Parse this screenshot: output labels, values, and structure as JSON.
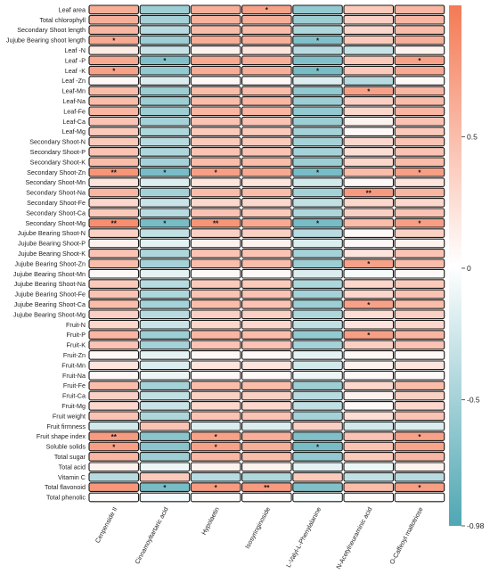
{
  "chart_data": {
    "type": "heatmap",
    "rows": [
      "Leaf area",
      "Total chlorophyll",
      "Secondary Shoot length",
      "Jujube Bearing shoot length",
      "Leaf -N",
      "Leaf -P",
      "Leaf -K",
      "Leaf -Zn",
      "Leaf-Mn",
      "Leaf-Na",
      "Leaf-Fe",
      "Leaf-Ca",
      "Leaf-Mg",
      "Secondary Shoot-N",
      "Secondary Shoot-P",
      "Secondary Shoot-K",
      "Secondary Shoot-Zn",
      "Secondary Shoot-Mn",
      "Secondary Shoot-Na",
      "Secondary Shoot-Fe",
      "Secondary Shoot-Ca",
      "Secondary Shoot-Mg",
      "Jujube Bearing Shoot-N",
      "Jujube Bearing Shoot-P",
      "Jujube Bearing Shoot-K",
      "Jujube Bearing Shoot-Zn",
      "Jujube Bearing Shoot-Mn",
      "Jujube Bearing Shoot-Na",
      "Jujube Bearing Shoot-Fe",
      "Jujube Bearing Shoot-Ca",
      "Jujube Bearing Shoot-Mg",
      "Fruit-N",
      "Fruit-P",
      "Fruit-K",
      "Fruit-Zn",
      "Fruit-Mn",
      "Fruit-Na",
      "Fruit-Fe",
      "Fruit-Ca",
      "Fruit-Mg",
      "Fruit weight",
      "Fruit firmness",
      "Fruit shape index",
      "Soluble solids",
      "Total sugar",
      "Total acid",
      "Vitamin C",
      "Total flavonoid",
      "Total phenolic"
    ],
    "columns": [
      "Cenpenside II",
      "Cinnamoyltartaric acid",
      "Hypolaetin",
      "Isosyringinoside",
      "L-Valyl-L-Phenylalanine",
      "N-Acetylneuraminic acid",
      "O-Caffeoyl maltotriose"
    ],
    "values": [
      [
        0.62,
        -0.55,
        0.6,
        0.7,
        -0.6,
        0.4,
        0.55
      ],
      [
        0.6,
        -0.5,
        0.58,
        0.6,
        -0.55,
        0.35,
        0.55
      ],
      [
        0.55,
        -0.4,
        0.5,
        0.5,
        -0.45,
        0.3,
        0.5
      ],
      [
        0.65,
        -0.55,
        0.62,
        0.6,
        -0.7,
        0.4,
        0.6
      ],
      [
        0.15,
        -0.3,
        0.1,
        0.2,
        -0.4,
        -0.3,
        0.1
      ],
      [
        0.65,
        -0.7,
        0.65,
        0.6,
        -0.7,
        0.4,
        0.7
      ],
      [
        0.7,
        -0.6,
        0.62,
        0.6,
        -0.75,
        0.4,
        0.65
      ],
      [
        0.05,
        -0.2,
        0.05,
        0.05,
        -0.2,
        -0.4,
        0.05
      ],
      [
        0.5,
        -0.55,
        0.5,
        0.5,
        -0.6,
        0.7,
        0.55
      ],
      [
        0.5,
        -0.55,
        0.5,
        0.55,
        -0.55,
        0.35,
        0.5
      ],
      [
        0.55,
        -0.55,
        0.55,
        0.55,
        -0.6,
        0.3,
        0.55
      ],
      [
        0.45,
        -0.5,
        0.45,
        0.45,
        -0.55,
        0.1,
        0.45
      ],
      [
        0.4,
        -0.45,
        0.4,
        0.4,
        -0.5,
        0.05,
        0.4
      ],
      [
        0.4,
        -0.4,
        0.4,
        0.4,
        -0.5,
        0.3,
        0.45
      ],
      [
        0.45,
        -0.45,
        0.45,
        0.45,
        -0.5,
        0.25,
        0.45
      ],
      [
        0.5,
        -0.5,
        0.5,
        0.5,
        -0.55,
        0.3,
        0.5
      ],
      [
        0.8,
        -0.75,
        0.72,
        0.65,
        -0.75,
        0.5,
        0.72
      ],
      [
        0.2,
        -0.2,
        0.2,
        0.2,
        -0.25,
        0.05,
        0.2
      ],
      [
        0.55,
        -0.5,
        0.5,
        0.5,
        -0.5,
        0.75,
        0.55
      ],
      [
        0.3,
        -0.3,
        0.3,
        0.3,
        -0.35,
        0.3,
        0.3
      ],
      [
        0.4,
        -0.4,
        0.45,
        0.4,
        -0.45,
        0.35,
        0.45
      ],
      [
        0.85,
        -0.75,
        0.8,
        0.65,
        -0.75,
        0.5,
        0.72
      ],
      [
        0.35,
        -0.35,
        0.35,
        0.35,
        -0.4,
        0.05,
        0.35
      ],
      [
        0.1,
        -0.15,
        0.1,
        0.1,
        -0.2,
        0.05,
        0.1
      ],
      [
        0.45,
        -0.45,
        0.45,
        0.45,
        -0.5,
        0.2,
        0.45
      ],
      [
        0.5,
        -0.5,
        0.5,
        0.5,
        -0.55,
        0.7,
        0.5
      ],
      [
        0.05,
        -0.15,
        0.05,
        0.05,
        -0.2,
        -0.05,
        0.05
      ],
      [
        0.4,
        -0.4,
        0.4,
        0.4,
        -0.45,
        0.3,
        0.4
      ],
      [
        0.45,
        -0.45,
        0.45,
        0.45,
        -0.5,
        0.3,
        0.45
      ],
      [
        0.5,
        -0.5,
        0.5,
        0.45,
        -0.55,
        0.7,
        0.5
      ],
      [
        0.35,
        -0.4,
        0.35,
        0.35,
        -0.45,
        0.25,
        0.35
      ],
      [
        0.3,
        -0.3,
        0.3,
        0.3,
        -0.35,
        0.2,
        0.3
      ],
      [
        0.55,
        -0.55,
        0.55,
        0.5,
        -0.6,
        0.72,
        0.55
      ],
      [
        0.45,
        -0.5,
        0.45,
        0.45,
        -0.5,
        0.35,
        0.45
      ],
      [
        0.05,
        -0.15,
        0.05,
        0.05,
        -0.15,
        0.05,
        0.05
      ],
      [
        0.2,
        -0.2,
        0.2,
        0.2,
        -0.25,
        0.1,
        0.2
      ],
      [
        0.05,
        -0.1,
        0.05,
        0.05,
        -0.1,
        0.05,
        0.05
      ],
      [
        0.5,
        -0.5,
        0.5,
        0.5,
        -0.55,
        0.3,
        0.5
      ],
      [
        0.35,
        -0.35,
        0.35,
        0.35,
        -0.4,
        0.1,
        0.35
      ],
      [
        0.3,
        -0.3,
        0.3,
        0.3,
        -0.35,
        0.05,
        0.3
      ],
      [
        0.45,
        -0.45,
        0.45,
        0.45,
        -0.5,
        0.25,
        0.45
      ],
      [
        -0.25,
        0.45,
        -0.2,
        -0.2,
        0.35,
        -0.25,
        -0.2
      ],
      [
        0.75,
        -0.65,
        0.7,
        0.6,
        -0.7,
        0.45,
        0.7
      ],
      [
        0.72,
        -0.65,
        0.7,
        0.6,
        -0.75,
        0.45,
        0.68
      ],
      [
        0.55,
        -0.55,
        0.55,
        0.5,
        -0.6,
        0.4,
        0.55
      ],
      [
        0.1,
        -0.1,
        0.1,
        0.1,
        -0.15,
        -0.1,
        0.1
      ],
      [
        -0.4,
        0.4,
        -0.4,
        -0.45,
        0.4,
        -0.35,
        -0.4
      ],
      [
        0.78,
        -0.75,
        0.75,
        0.75,
        -0.7,
        0.5,
        0.72
      ],
      [
        0.02,
        -0.05,
        0.02,
        0.02,
        -0.05,
        0.02,
        0.02
      ]
    ],
    "significance": [
      [
        "",
        "",
        "",
        "*",
        "",
        "",
        ""
      ],
      [
        "",
        "",
        "",
        "",
        "",
        "",
        ""
      ],
      [
        "",
        "",
        "",
        "",
        "",
        "",
        ""
      ],
      [
        "*",
        "",
        "",
        "",
        "*",
        "",
        ""
      ],
      [
        "",
        "",
        "",
        "",
        "",
        "",
        ""
      ],
      [
        "",
        "*",
        "",
        "",
        "",
        "",
        "*"
      ],
      [
        "*",
        "",
        "",
        "",
        "*",
        "",
        ""
      ],
      [
        "",
        "",
        "",
        "",
        "",
        "",
        ""
      ],
      [
        "",
        "",
        "",
        "",
        "",
        "*",
        ""
      ],
      [
        "",
        "",
        "",
        "",
        "",
        "",
        ""
      ],
      [
        "",
        "",
        "",
        "",
        "",
        "",
        ""
      ],
      [
        "",
        "",
        "",
        "",
        "",
        "",
        ""
      ],
      [
        "",
        "",
        "",
        "",
        "",
        "",
        ""
      ],
      [
        "",
        "",
        "",
        "",
        "",
        "",
        ""
      ],
      [
        "",
        "",
        "",
        "",
        "",
        "",
        ""
      ],
      [
        "",
        "",
        "",
        "",
        "",
        "",
        ""
      ],
      [
        "**",
        "*",
        "*",
        "",
        "*",
        "",
        "*"
      ],
      [
        "",
        "",
        "",
        "",
        "",
        "",
        ""
      ],
      [
        "",
        "",
        "",
        "",
        "",
        "**",
        ""
      ],
      [
        "",
        "",
        "",
        "",
        "",
        "",
        ""
      ],
      [
        "",
        "",
        "",
        "",
        "",
        "",
        ""
      ],
      [
        "**",
        "*",
        "**",
        "",
        "*",
        "",
        "*"
      ],
      [
        "",
        "",
        "",
        "",
        "",
        "",
        ""
      ],
      [
        "",
        "",
        "",
        "",
        "",
        "",
        ""
      ],
      [
        "",
        "",
        "",
        "",
        "",
        "",
        ""
      ],
      [
        "",
        "",
        "",
        "",
        "",
        "*",
        ""
      ],
      [
        "",
        "",
        "",
        "",
        "",
        "",
        ""
      ],
      [
        "",
        "",
        "",
        "",
        "",
        "",
        ""
      ],
      [
        "",
        "",
        "",
        "",
        "",
        "",
        ""
      ],
      [
        "",
        "",
        "",
        "",
        "",
        "*",
        ""
      ],
      [
        "",
        "",
        "",
        "",
        "",
        "",
        ""
      ],
      [
        "",
        "",
        "",
        "",
        "",
        "",
        ""
      ],
      [
        "",
        "",
        "",
        "",
        "",
        "*",
        ""
      ],
      [
        "",
        "",
        "",
        "",
        "",
        "",
        ""
      ],
      [
        "",
        "",
        "",
        "",
        "",
        "",
        ""
      ],
      [
        "",
        "",
        "",
        "",
        "",
        "",
        ""
      ],
      [
        "",
        "",
        "",
        "",
        "",
        "",
        ""
      ],
      [
        "",
        "",
        "",
        "",
        "",
        "",
        ""
      ],
      [
        "",
        "",
        "",
        "",
        "",
        "",
        ""
      ],
      [
        "",
        "",
        "",
        "",
        "",
        "",
        ""
      ],
      [
        "",
        "",
        "",
        "",
        "",
        "",
        ""
      ],
      [
        "",
        "",
        "",
        "",
        "",
        "",
        ""
      ],
      [
        "**",
        "",
        "*",
        "",
        "",
        "",
        "*"
      ],
      [
        "*",
        "",
        "*",
        "",
        "*",
        "",
        ""
      ],
      [
        "",
        "",
        "",
        "",
        "",
        "",
        ""
      ],
      [
        "",
        "",
        "",
        "",
        "",
        "",
        ""
      ],
      [
        "",
        "",
        "",
        "",
        "",
        "",
        ""
      ],
      [
        "",
        "*",
        "*",
        "**",
        "",
        "",
        "*"
      ],
      [
        "",
        "",
        "",
        "",
        "",
        "",
        ""
      ]
    ],
    "colorbar": {
      "min": -0.98,
      "max": 1,
      "ticks": [
        0.5,
        0,
        -0.5,
        -0.98
      ],
      "tick_labels": [
        "0.5",
        "0",
        "-0.5",
        "-0.98"
      ]
    },
    "colors": {
      "positive": "#f47a55",
      "neutral": "#ffffff",
      "negative": "#4fa7b3"
    }
  }
}
